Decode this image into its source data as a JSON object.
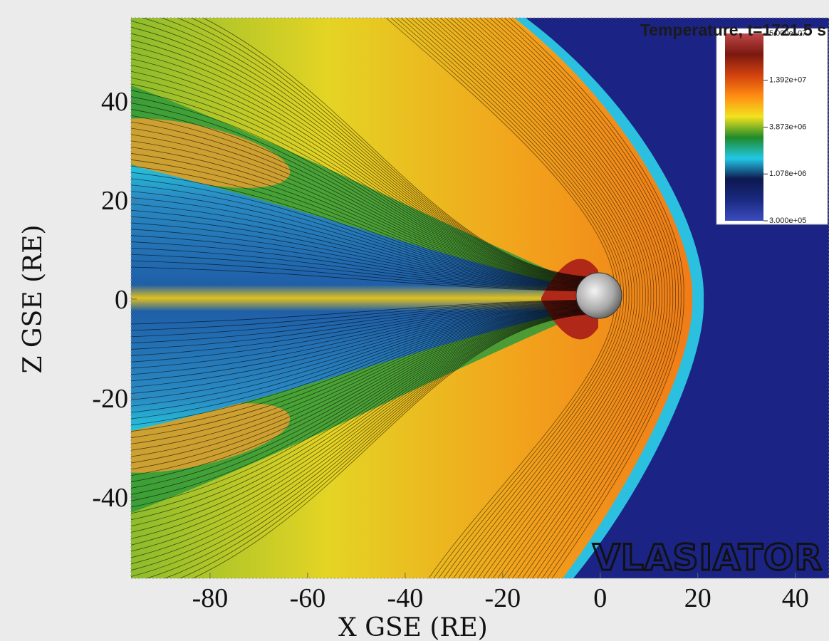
{
  "chart_data": {
    "type": "field",
    "title": "Temperature, t=1721.5 s",
    "x_label": "X GSE (RE)",
    "y_label": "Z GSE (RE)",
    "xlim": [
      -96.2,
      46.9
    ],
    "ylim": [
      -56.4,
      56.8
    ],
    "xticks": [
      -80,
      -60,
      -40,
      -20,
      0,
      20,
      40
    ],
    "yticks": [
      -40,
      -20,
      0,
      20,
      40
    ],
    "colorbar": {
      "scale": "log",
      "lim": [
        300000,
        50000000
      ],
      "ticks": [
        {
          "value": 50000000,
          "label": "5.000e+07"
        },
        {
          "value": 13920000,
          "label": "1.392e+07"
        },
        {
          "value": 3873000,
          "label": "3.873e+06"
        },
        {
          "value": 1078000,
          "label": "1.078e+06"
        },
        {
          "value": 300000,
          "label": "3.000e+05"
        }
      ],
      "colors": [
        "#3b4cc0",
        "#1a2a80",
        "#0e1850",
        "#22c8e6",
        "#1f8a2a",
        "#f2e21e",
        "#ff8c12",
        "#d2420f",
        "#7a1810",
        "#c04848"
      ]
    },
    "logo": "VLASIATOR"
  }
}
